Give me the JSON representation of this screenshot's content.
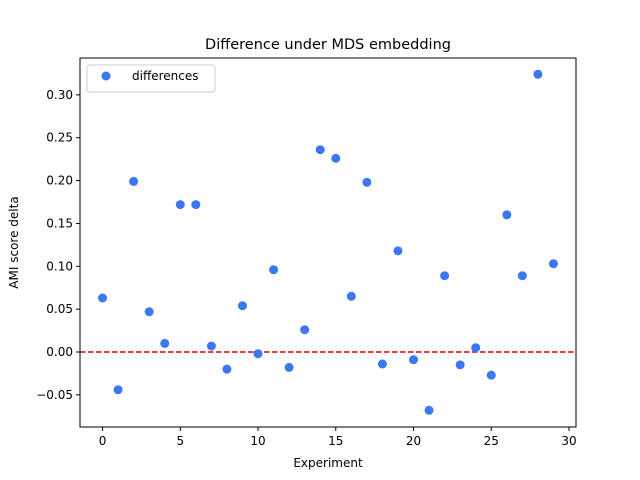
{
  "chart_data": {
    "type": "scatter",
    "title": "Difference under MDS embedding",
    "xlabel": "Experiment",
    "ylabel": "AMI score delta",
    "xlim": [
      -1.45,
      30.45
    ],
    "ylim": [
      -0.0875,
      0.343
    ],
    "xticks": [
      0,
      5,
      10,
      15,
      20,
      25,
      30
    ],
    "yticks": [
      -0.05,
      0.0,
      0.05,
      0.1,
      0.15,
      0.2,
      0.25,
      0.3
    ],
    "xtick_labels": [
      "0",
      "5",
      "10",
      "15",
      "20",
      "25",
      "30"
    ],
    "ytick_labels": [
      "−0.05",
      "0.00",
      "0.05",
      "0.10",
      "0.15",
      "0.20",
      "0.25",
      "0.30"
    ],
    "grid": false,
    "legend_position": "top-left",
    "reference_line": {
      "y": 0,
      "color": "#dd0000",
      "style": "dashed"
    },
    "series": [
      {
        "name": "differences",
        "color": "#3b78f0",
        "x": [
          0,
          1,
          2,
          3,
          4,
          5,
          6,
          7,
          8,
          9,
          10,
          11,
          12,
          13,
          14,
          15,
          16,
          17,
          18,
          19,
          20,
          21,
          22,
          23,
          24,
          25,
          26,
          27,
          28,
          29
        ],
        "y": [
          0.063,
          -0.044,
          0.199,
          0.047,
          0.01,
          0.172,
          0.172,
          0.007,
          -0.02,
          0.054,
          -0.002,
          0.096,
          -0.018,
          0.026,
          0.236,
          0.226,
          0.065,
          0.198,
          -0.014,
          0.118,
          -0.009,
          -0.068,
          0.089,
          -0.015,
          0.005,
          -0.027,
          0.16,
          0.089,
          0.324,
          0.103
        ]
      }
    ]
  }
}
